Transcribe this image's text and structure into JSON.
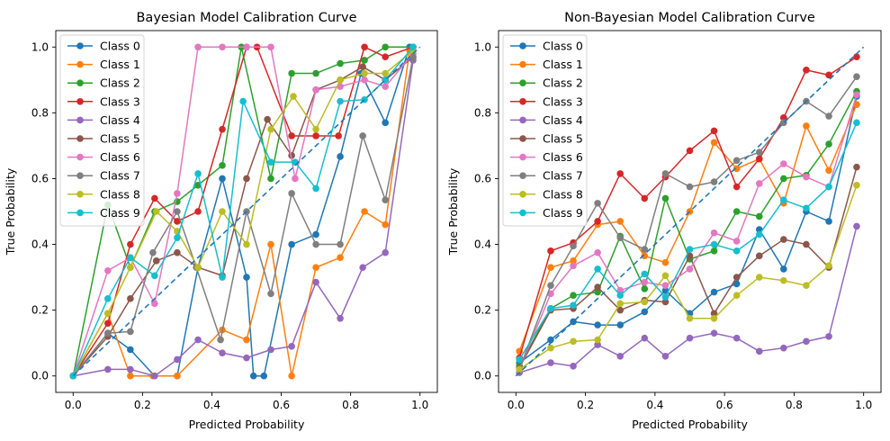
{
  "chart_data": [
    {
      "type": "line",
      "title": "Bayesian Model Calibration Curve",
      "xlabel": "Predicted Probability",
      "ylabel": "True Probability",
      "xlim": [
        -0.05,
        1.05
      ],
      "ylim": [
        -0.05,
        1.05
      ],
      "xticks": [
        "0.0",
        "0.2",
        "0.4",
        "0.6",
        "0.8",
        "1.0"
      ],
      "yticks": [
        "0.0",
        "0.2",
        "0.4",
        "0.6",
        "0.8",
        "1.0"
      ],
      "legend": "upper-left",
      "grid": false,
      "reference_line": {
        "x": [
          0,
          1
        ],
        "y": [
          0,
          1
        ],
        "style": "dashed",
        "color": "#1f77b4"
      },
      "series": [
        {
          "name": "Class 0",
          "color": "#1f77b4",
          "x": [
            0.0,
            0.1,
            0.165,
            0.235,
            0.3,
            0.36,
            0.43,
            0.5,
            0.52,
            0.55,
            0.63,
            0.7,
            0.77,
            0.83,
            0.9,
            0.97
          ],
          "y": [
            0.0,
            0.13,
            0.08,
            0.0,
            0.0,
            0.33,
            0.6,
            0.3,
            0.0,
            0.0,
            0.4,
            0.43,
            0.667,
            0.92,
            0.77,
            1.0
          ]
        },
        {
          "name": "Class 1",
          "color": "#ff7f0e",
          "x": [
            0.0,
            0.1,
            0.165,
            0.23,
            0.3,
            0.43,
            0.5,
            0.57,
            0.63,
            0.7,
            0.77,
            0.84,
            0.9,
            0.97
          ],
          "y": [
            0.0,
            0.19,
            0.0,
            0.0,
            0.0,
            0.14,
            0.11,
            0.4,
            0.0,
            0.33,
            0.36,
            0.5,
            0.46,
            0.99
          ]
        },
        {
          "name": "Class 2",
          "color": "#2ca02c",
          "x": [
            0.0,
            0.1,
            0.165,
            0.235,
            0.3,
            0.36,
            0.43,
            0.485,
            0.57,
            0.63,
            0.7,
            0.77,
            0.84,
            0.9,
            0.98
          ],
          "y": [
            0.0,
            0.52,
            0.33,
            0.5,
            0.53,
            0.58,
            0.64,
            1.0,
            0.6,
            0.92,
            0.92,
            0.95,
            0.96,
            1.0,
            1.0
          ]
        },
        {
          "name": "Class 3",
          "color": "#d62728",
          "x": [
            0.0,
            0.1,
            0.165,
            0.235,
            0.3,
            0.36,
            0.43,
            0.5,
            0.53,
            0.63,
            0.7,
            0.765,
            0.84,
            0.9,
            0.98
          ],
          "y": [
            0.0,
            0.16,
            0.4,
            0.54,
            0.47,
            0.5,
            0.75,
            1.0,
            1.0,
            0.73,
            0.73,
            0.73,
            1.0,
            0.97,
            1.0
          ]
        },
        {
          "name": "Class 4",
          "color": "#9467bd",
          "x": [
            0.0,
            0.1,
            0.165,
            0.235,
            0.3,
            0.36,
            0.43,
            0.5,
            0.57,
            0.63,
            0.7,
            0.77,
            0.835,
            0.9,
            0.98
          ],
          "y": [
            0.0,
            0.02,
            0.02,
            0.0,
            0.05,
            0.11,
            0.07,
            0.055,
            0.08,
            0.09,
            0.285,
            0.175,
            0.33,
            0.375,
            0.96
          ]
        },
        {
          "name": "Class 5",
          "color": "#8c564b",
          "x": [
            0.0,
            0.1,
            0.165,
            0.24,
            0.3,
            0.36,
            0.43,
            0.5,
            0.56,
            0.63,
            0.7,
            0.77,
            0.835,
            0.9,
            0.98
          ],
          "y": [
            0.0,
            0.12,
            0.235,
            0.35,
            0.375,
            0.33,
            0.305,
            0.6,
            0.78,
            0.67,
            0.87,
            0.9,
            0.94,
            0.9,
            0.97
          ]
        },
        {
          "name": "Class 6",
          "color": "#e377c2",
          "x": [
            0.0,
            0.1,
            0.165,
            0.235,
            0.3,
            0.36,
            0.43,
            0.5,
            0.57,
            0.64,
            0.7,
            0.77,
            0.84,
            0.9,
            0.98
          ],
          "y": [
            0.0,
            0.32,
            0.36,
            0.22,
            0.555,
            1.0,
            1.0,
            1.0,
            1.0,
            0.6,
            0.87,
            0.88,
            0.9,
            0.88,
            0.98
          ]
        },
        {
          "name": "Class 7",
          "color": "#7f7f7f",
          "x": [
            0.0,
            0.1,
            0.165,
            0.23,
            0.3,
            0.355,
            0.425,
            0.5,
            0.57,
            0.63,
            0.7,
            0.77,
            0.835,
            0.9,
            0.98
          ],
          "y": [
            0.0,
            0.13,
            0.135,
            0.375,
            0.5,
            0.33,
            0.11,
            0.5,
            0.25,
            0.555,
            0.4,
            0.4,
            0.73,
            0.535,
            0.97
          ]
        },
        {
          "name": "Class 8",
          "color": "#bcbd22",
          "x": [
            0.0,
            0.1,
            0.165,
            0.24,
            0.3,
            0.36,
            0.43,
            0.5,
            0.57,
            0.635,
            0.7,
            0.77,
            0.84,
            0.9,
            0.98
          ],
          "y": [
            0.0,
            0.19,
            0.33,
            0.5,
            0.44,
            0.33,
            0.5,
            0.4,
            0.75,
            0.85,
            0.75,
            0.9,
            0.92,
            0.92,
            0.99
          ]
        },
        {
          "name": "Class 9",
          "color": "#17becf",
          "x": [
            0.0,
            0.1,
            0.165,
            0.235,
            0.3,
            0.36,
            0.43,
            0.49,
            0.57,
            0.64,
            0.7,
            0.77,
            0.84,
            0.9,
            0.98
          ],
          "y": [
            0.0,
            0.235,
            0.36,
            0.305,
            0.42,
            0.615,
            0.3,
            0.835,
            0.65,
            0.65,
            0.57,
            0.835,
            0.84,
            0.9,
            1.0
          ]
        }
      ]
    },
    {
      "type": "line",
      "title": "Non-Bayesian Model Calibration Curve",
      "xlabel": "Predicted Probability",
      "ylabel": "True Probability",
      "xlim": [
        -0.05,
        1.05
      ],
      "ylim": [
        -0.05,
        1.05
      ],
      "xticks": [
        "0.0",
        "0.2",
        "0.4",
        "0.6",
        "0.8",
        "1.0"
      ],
      "yticks": [
        "0.0",
        "0.2",
        "0.4",
        "0.6",
        "0.8",
        "1.0"
      ],
      "legend": "upper-left",
      "grid": false,
      "reference_line": {
        "x": [
          0,
          1
        ],
        "y": [
          0,
          1
        ],
        "style": "dashed",
        "color": "#1f77b4"
      },
      "series": [
        {
          "name": "Class 0",
          "color": "#1f77b4",
          "x": [
            0.01,
            0.1,
            0.165,
            0.235,
            0.3,
            0.37,
            0.43,
            0.5,
            0.57,
            0.635,
            0.7,
            0.77,
            0.835,
            0.9,
            0.98
          ],
          "y": [
            0.04,
            0.11,
            0.165,
            0.155,
            0.155,
            0.195,
            0.26,
            0.19,
            0.255,
            0.28,
            0.445,
            0.325,
            0.5,
            0.47,
            0.85
          ]
        },
        {
          "name": "Class 1",
          "color": "#ff7f0e",
          "x": [
            0.01,
            0.1,
            0.165,
            0.235,
            0.3,
            0.37,
            0.43,
            0.5,
            0.57,
            0.635,
            0.7,
            0.77,
            0.835,
            0.9,
            0.98
          ],
          "y": [
            0.075,
            0.33,
            0.35,
            0.46,
            0.47,
            0.365,
            0.345,
            0.5,
            0.71,
            0.63,
            0.66,
            0.525,
            0.76,
            0.625,
            0.825
          ]
        },
        {
          "name": "Class 2",
          "color": "#2ca02c",
          "x": [
            0.01,
            0.1,
            0.165,
            0.235,
            0.3,
            0.37,
            0.43,
            0.5,
            0.57,
            0.635,
            0.7,
            0.77,
            0.835,
            0.9,
            0.98
          ],
          "y": [
            0.03,
            0.205,
            0.245,
            0.255,
            0.425,
            0.265,
            0.54,
            0.355,
            0.38,
            0.5,
            0.485,
            0.6,
            0.61,
            0.705,
            0.865
          ]
        },
        {
          "name": "Class 3",
          "color": "#d62728",
          "x": [
            0.01,
            0.1,
            0.165,
            0.235,
            0.3,
            0.37,
            0.43,
            0.5,
            0.57,
            0.635,
            0.7,
            0.77,
            0.835,
            0.9,
            0.98
          ],
          "y": [
            0.055,
            0.38,
            0.405,
            0.47,
            0.615,
            0.54,
            0.605,
            0.685,
            0.745,
            0.575,
            0.66,
            0.785,
            0.93,
            0.915,
            0.97
          ]
        },
        {
          "name": "Class 4",
          "color": "#9467bd",
          "x": [
            0.01,
            0.1,
            0.165,
            0.235,
            0.3,
            0.37,
            0.43,
            0.5,
            0.57,
            0.635,
            0.7,
            0.77,
            0.835,
            0.9,
            0.98
          ],
          "y": [
            0.01,
            0.04,
            0.03,
            0.095,
            0.06,
            0.115,
            0.06,
            0.115,
            0.13,
            0.115,
            0.075,
            0.085,
            0.105,
            0.12,
            0.455
          ]
        },
        {
          "name": "Class 5",
          "color": "#8c564b",
          "x": [
            0.01,
            0.1,
            0.165,
            0.235,
            0.3,
            0.37,
            0.43,
            0.5,
            0.57,
            0.635,
            0.7,
            0.77,
            0.835,
            0.9,
            0.98
          ],
          "y": [
            0.025,
            0.2,
            0.205,
            0.27,
            0.2,
            0.23,
            0.225,
            0.365,
            0.19,
            0.3,
            0.365,
            0.415,
            0.4,
            0.33,
            0.635
          ]
        },
        {
          "name": "Class 6",
          "color": "#e377c2",
          "x": [
            0.01,
            0.1,
            0.165,
            0.235,
            0.3,
            0.37,
            0.43,
            0.5,
            0.57,
            0.635,
            0.7,
            0.77,
            0.835,
            0.9,
            0.98
          ],
          "y": [
            0.02,
            0.25,
            0.335,
            0.375,
            0.26,
            0.285,
            0.275,
            0.325,
            0.435,
            0.41,
            0.585,
            0.645,
            0.605,
            0.575,
            0.855
          ]
        },
        {
          "name": "Class 7",
          "color": "#7f7f7f",
          "x": [
            0.01,
            0.1,
            0.165,
            0.235,
            0.3,
            0.37,
            0.43,
            0.5,
            0.57,
            0.635,
            0.7,
            0.77,
            0.835,
            0.9,
            0.98
          ],
          "y": [
            0.02,
            0.275,
            0.395,
            0.525,
            0.42,
            0.385,
            0.615,
            0.575,
            0.59,
            0.655,
            0.68,
            0.77,
            0.835,
            0.79,
            0.91
          ]
        },
        {
          "name": "Class 8",
          "color": "#bcbd22",
          "x": [
            0.01,
            0.1,
            0.165,
            0.235,
            0.3,
            0.37,
            0.43,
            0.5,
            0.57,
            0.635,
            0.7,
            0.77,
            0.835,
            0.9,
            0.98
          ],
          "y": [
            0.02,
            0.085,
            0.105,
            0.11,
            0.22,
            0.225,
            0.305,
            0.175,
            0.175,
            0.245,
            0.3,
            0.29,
            0.275,
            0.335,
            0.58
          ]
        },
        {
          "name": "Class 9",
          "color": "#17becf",
          "x": [
            0.01,
            0.1,
            0.165,
            0.235,
            0.3,
            0.37,
            0.43,
            0.5,
            0.57,
            0.635,
            0.7,
            0.77,
            0.835,
            0.9,
            0.98
          ],
          "y": [
            0.05,
            0.205,
            0.215,
            0.325,
            0.245,
            0.31,
            0.24,
            0.385,
            0.4,
            0.38,
            0.43,
            0.535,
            0.51,
            0.575,
            0.77
          ]
        }
      ]
    }
  ]
}
